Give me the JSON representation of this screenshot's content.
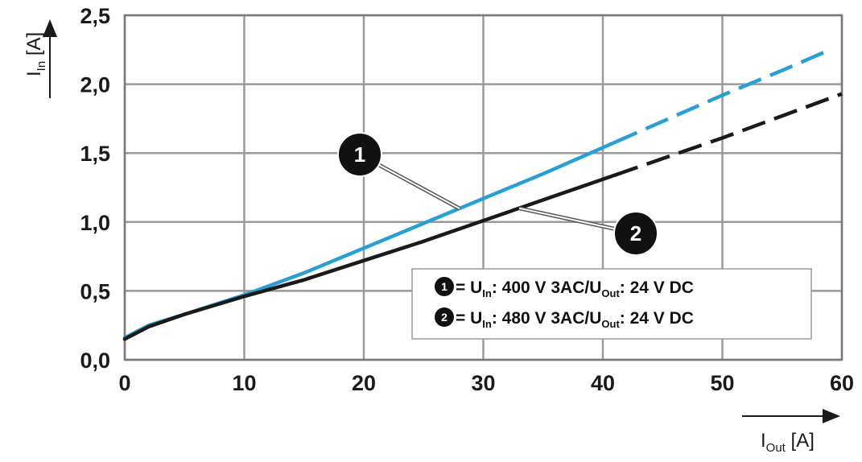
{
  "chart_data": {
    "type": "line",
    "title": "",
    "xlabel": {
      "main": "I",
      "sub": "Out",
      "unit": " [A]"
    },
    "ylabel": {
      "main": "I",
      "sub": "In",
      "unit": " [A]"
    },
    "xlim": [
      0,
      60
    ],
    "ylim": [
      0,
      2.5
    ],
    "x_ticks": [
      "0",
      "10",
      "20",
      "30",
      "40",
      "50",
      "60"
    ],
    "y_ticks": [
      "0,0",
      "0,5",
      "1,0",
      "1,5",
      "2,0",
      "2,5"
    ],
    "grid": true,
    "series": [
      {
        "id": "1",
        "color": "#2a9fd6",
        "solid_until_x": 41,
        "x": [
          0,
          2,
          5,
          10,
          15,
          20,
          25,
          30,
          35,
          40,
          45,
          50,
          55,
          59
        ],
        "y": [
          0.16,
          0.25,
          0.33,
          0.47,
          0.63,
          0.81,
          0.99,
          1.17,
          1.35,
          1.54,
          1.73,
          1.92,
          2.1,
          2.25
        ]
      },
      {
        "id": "2",
        "color": "#1a1a1a",
        "solid_until_x": 41,
        "x": [
          0,
          2,
          5,
          10,
          15,
          20,
          25,
          30,
          35,
          40,
          45,
          50,
          55,
          60
        ],
        "y": [
          0.15,
          0.24,
          0.33,
          0.46,
          0.58,
          0.72,
          0.86,
          1.01,
          1.16,
          1.31,
          1.46,
          1.61,
          1.77,
          1.93
        ]
      }
    ],
    "legend": {
      "placement": "lower-right",
      "entries": [
        {
          "num": "1",
          "eq": " = U",
          "sub1": "In",
          "mid": ": 400 V 3AC/U",
          "sub2": "Out",
          "end": ": 24 V DC"
        },
        {
          "num": "2",
          "eq": " = U",
          "sub1": "In",
          "mid": ": 480 V 3AC/U",
          "sub2": "Out",
          "end": ": 24 V DC"
        }
      ]
    },
    "annotations": [
      {
        "label": "1",
        "points_to_series": "1",
        "at_x": 28
      },
      {
        "label": "2",
        "points_to_series": "2",
        "at_x": 33
      }
    ]
  }
}
